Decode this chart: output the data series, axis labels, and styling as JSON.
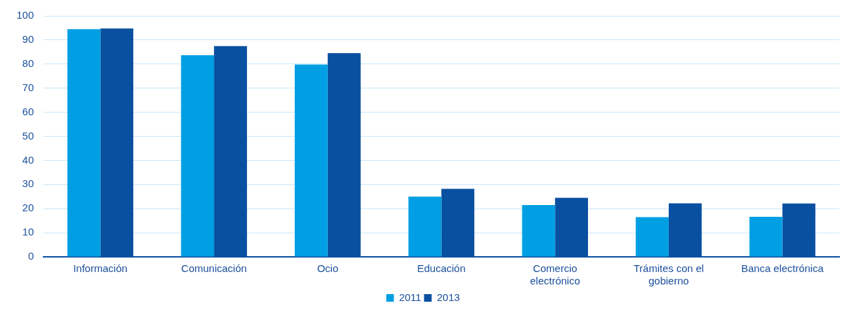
{
  "chart_data": {
    "type": "bar",
    "categories": [
      "Información",
      "Comunicación",
      "Ocio",
      "Educación",
      "Comercio electrónico",
      "Trámites con el gobierno",
      "Banca electrónica"
    ],
    "series": [
      {
        "name": "2011",
        "color": "#009fe3",
        "values": [
          94.5,
          83.7,
          79.8,
          25,
          21.5,
          16.5,
          16.6
        ]
      },
      {
        "name": "2013",
        "color": "#0a50a1",
        "values": [
          94.8,
          87.5,
          84.5,
          28.2,
          24.5,
          22.2,
          22.1
        ]
      }
    ],
    "ylim": [
      0,
      100
    ],
    "yticks": [
      0,
      10,
      20,
      30,
      40,
      50,
      60,
      70,
      80,
      90,
      100
    ],
    "grid": "y",
    "legend": "bottom"
  }
}
